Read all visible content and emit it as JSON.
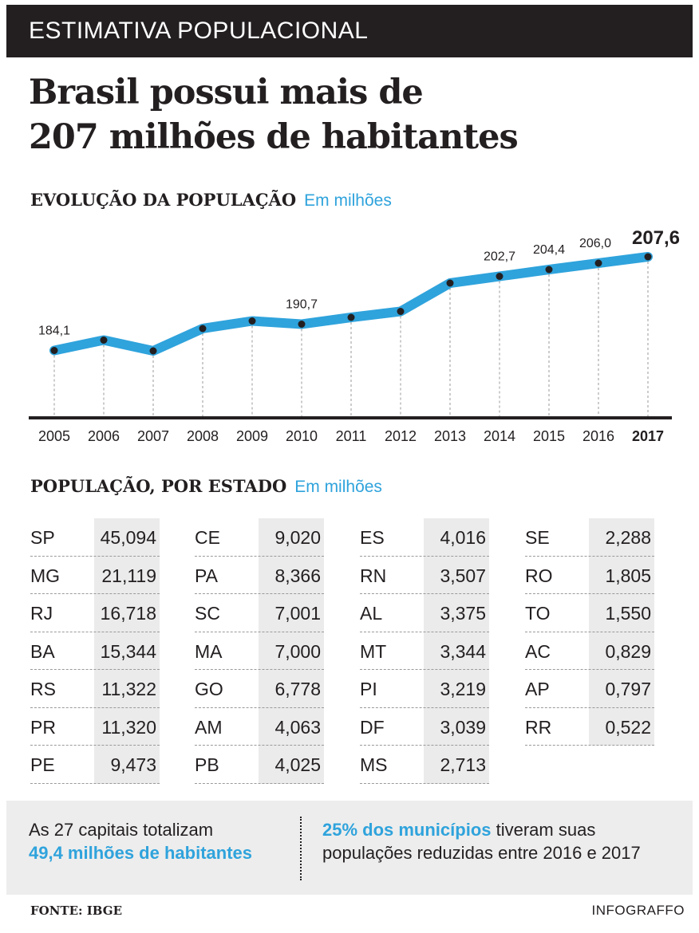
{
  "banner": {
    "label": "ESTIMATIVA POPULACIONAL"
  },
  "headline": {
    "line1": "Brasil possui mais de",
    "line2": "207 milhões de habitantes"
  },
  "evolution": {
    "title": "EVOLUÇÃO DA POPULAÇÃO",
    "unit": "Em milhões"
  },
  "colors": {
    "accent": "#2fa3dc",
    "dark": "#231f20",
    "shade": "#ebebeb"
  },
  "chart_data": {
    "type": "line",
    "title": "EVOLUÇÃO DA POPULAÇÃO",
    "subtitle": "Em milhões",
    "x": [
      "2005",
      "2006",
      "2007",
      "2008",
      "2009",
      "2010",
      "2011",
      "2012",
      "2013",
      "2014",
      "2015",
      "2016",
      "2017"
    ],
    "values": [
      184.1,
      186.7,
      184.0,
      189.6,
      191.5,
      190.7,
      192.4,
      193.9,
      201.0,
      202.7,
      204.4,
      206.0,
      207.6
    ],
    "data_labels": [
      "184,1",
      null,
      null,
      null,
      null,
      "190,7",
      null,
      null,
      null,
      "202,7",
      "204,4",
      "206,0",
      "207,6"
    ],
    "highlight_label_index": 12,
    "xlabel": "",
    "ylabel": "",
    "ylim": [
      170,
      212
    ],
    "grid": "vertical dashed per year"
  },
  "states_section": {
    "title": "POPULAÇÃO, POR ESTADO",
    "unit": "Em milhões"
  },
  "states": [
    [
      {
        "abbr": "SP",
        "value": "45,094"
      },
      {
        "abbr": "MG",
        "value": "21,119"
      },
      {
        "abbr": "RJ",
        "value": "16,718"
      },
      {
        "abbr": "BA",
        "value": "15,344"
      },
      {
        "abbr": "RS",
        "value": "11,322"
      },
      {
        "abbr": "PR",
        "value": "11,320"
      },
      {
        "abbr": "PE",
        "value": "9,473"
      }
    ],
    [
      {
        "abbr": "CE",
        "value": "9,020"
      },
      {
        "abbr": "PA",
        "value": "8,366"
      },
      {
        "abbr": "SC",
        "value": "7,001"
      },
      {
        "abbr": "MA",
        "value": "7,000"
      },
      {
        "abbr": "GO",
        "value": "6,778"
      },
      {
        "abbr": "AM",
        "value": "4,063"
      },
      {
        "abbr": "PB",
        "value": "4,025"
      }
    ],
    [
      {
        "abbr": "ES",
        "value": "4,016"
      },
      {
        "abbr": "RN",
        "value": "3,507"
      },
      {
        "abbr": "AL",
        "value": "3,375"
      },
      {
        "abbr": "MT",
        "value": "3,344"
      },
      {
        "abbr": "PI",
        "value": "3,219"
      },
      {
        "abbr": "DF",
        "value": "3,039"
      },
      {
        "abbr": "MS",
        "value": "2,713"
      }
    ],
    [
      {
        "abbr": "SE",
        "value": "2,288"
      },
      {
        "abbr": "RO",
        "value": "1,805"
      },
      {
        "abbr": "TO",
        "value": "1,550"
      },
      {
        "abbr": "AC",
        "value": "0,829"
      },
      {
        "abbr": "AP",
        "value": "0,797"
      },
      {
        "abbr": "RR",
        "value": "0,522"
      }
    ]
  ],
  "footer": {
    "left_text": "As 27 capitais totalizam",
    "left_highlight": "49,4 milhões de habitantes",
    "right_highlight": "25% dos municípios",
    "right_text1": " tiveram suas",
    "right_text2": "populações reduzidas entre 2016 e 2017"
  },
  "source": "FONTE: IBGE",
  "credit": "INFOGRAFFO"
}
